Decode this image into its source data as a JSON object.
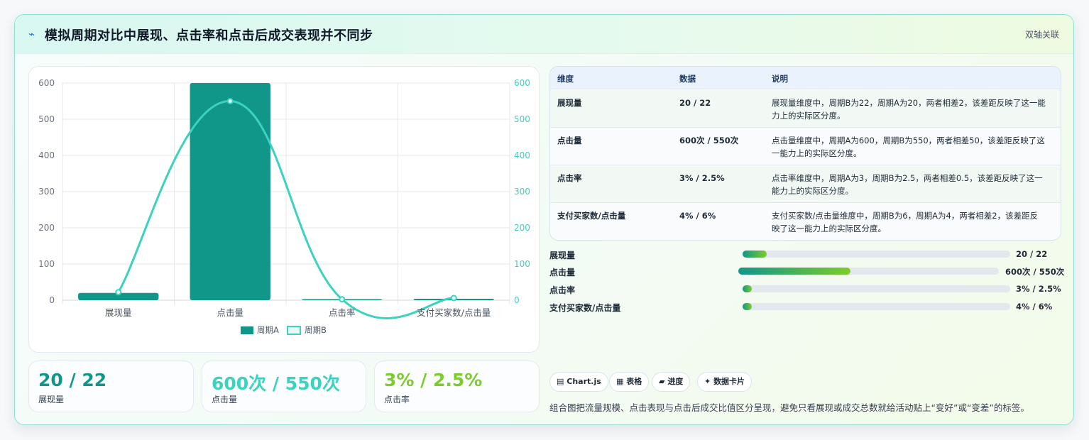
{
  "header": {
    "title": "模拟周期对比中展现、点击率和点击后成交表现并不同步",
    "subtitle": "双轴关联"
  },
  "chart_data": {
    "type": "bar",
    "categories": [
      "展现量",
      "点击量",
      "点击率",
      "支付买家数/点击量"
    ],
    "series": [
      {
        "name": "周期A",
        "type": "bar",
        "values": [
          20,
          600,
          3,
          4
        ],
        "color": "#11968a"
      },
      {
        "name": "周期B",
        "type": "line",
        "values": [
          22,
          550,
          2.5,
          6
        ],
        "color": "#3bd2c0"
      }
    ],
    "y_left_ticks": [
      "0",
      "100",
      "200",
      "300",
      "400",
      "500",
      "600"
    ],
    "y_right_ticks": [
      "0",
      "100",
      "200",
      "300",
      "400",
      "500",
      "600"
    ],
    "ylim": [
      0,
      600
    ],
    "grid": true,
    "legend_position": "bottom"
  },
  "kpis": [
    {
      "value": "20 / 22",
      "label": "展现量",
      "color": "#11968a"
    },
    {
      "value": "600次 / 550次",
      "label": "点击量",
      "color": "#3bd2c0"
    },
    {
      "value": "3% / 2.5%",
      "label": "点击率",
      "color": "#7ccc2a"
    }
  ],
  "table": {
    "headers": [
      "维度",
      "数据",
      "说明"
    ],
    "rows": [
      {
        "dim": "展现量",
        "data": "20 / 22",
        "desc1": "展现量维度中，周期B为22，周期A为20，两者相差2，该差距反映了这一能",
        "desc2": "力上的实际区分度。"
      },
      {
        "dim": "点击量",
        "data": "600次 / 550次",
        "desc1": "点击量维度中，周期A为600，周期B为550，两者相差50，该差距反映了这",
        "desc2": "一能力上的实际区分度。"
      },
      {
        "dim": "点击率",
        "data": "3% / 2.5%",
        "desc1": "点击率维度中，周期A为3，周期B为2.5，两者相差0.5，该差距反映了这一",
        "desc2": "能力上的实际区分度。"
      },
      {
        "dim": "支付买家数/点击量",
        "data": "4% / 6%",
        "desc1": "支付买家数/点击量维度中，周期B为6，周期A为4，两者相差2，该差距反",
        "desc2": "映了这一能力上的实际区分度。"
      }
    ]
  },
  "progress": [
    {
      "label": "展现量",
      "value": "20 / 22",
      "fraction": 0.09
    },
    {
      "label": "点击量",
      "value": "600次 / 550次",
      "fraction": 0.43
    },
    {
      "label": "点击率",
      "value": "3% / 2.5%",
      "fraction": 0.035
    },
    {
      "label": "支付买家数/点击量",
      "value": "4% / 6%",
      "fraction": 0.035
    }
  ],
  "chips": [
    {
      "icon": "chart-icon",
      "glyph": "▤",
      "label": "Chart.js"
    },
    {
      "icon": "table-icon",
      "glyph": "▦",
      "label": "表格"
    },
    {
      "icon": "progress-icon",
      "glyph": "▰",
      "label": "进度"
    },
    {
      "icon": "card-icon",
      "glyph": "✦",
      "label": "数据卡片"
    }
  ],
  "note": "组合图把流量规模、点击表现与点击后成交比值区分呈现，避免只看展现或成交总数就给活动贴上“变好”或“变差”的标签。"
}
